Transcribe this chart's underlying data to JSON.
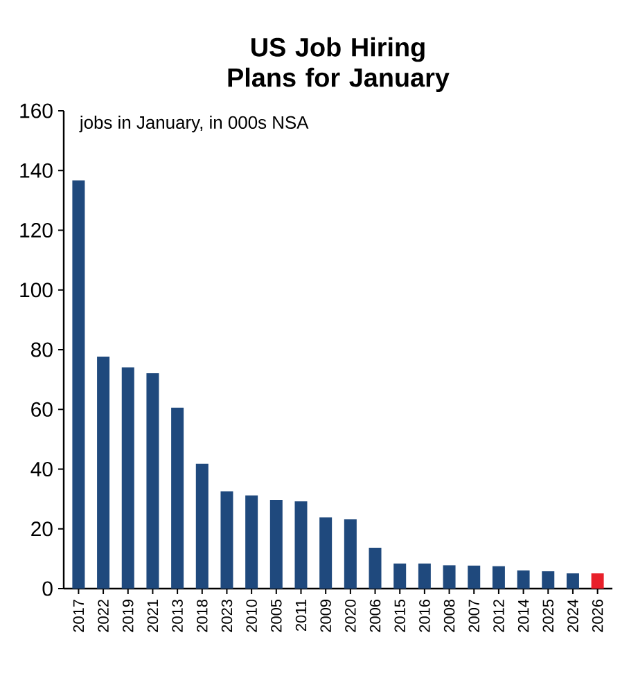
{
  "chart_data": {
    "type": "bar",
    "title": "US Job Hiring Plans for January",
    "annotations": [
      "jobs in January, in 000s NSA"
    ],
    "categories": [
      "2017",
      "2022",
      "2019",
      "2021",
      "2013",
      "2018",
      "2023",
      "2010",
      "2005",
      "2011",
      "2009",
      "2020",
      "2006",
      "2015",
      "2016",
      "2008",
      "2007",
      "2012",
      "2014",
      "2025",
      "2024",
      "2026"
    ],
    "values": [
      136.7,
      77.7,
      74.1,
      72.1,
      60.6,
      41.8,
      32.6,
      31.2,
      29.7,
      29.2,
      23.8,
      23.2,
      13.7,
      8.4,
      8.4,
      7.8,
      7.7,
      7.5,
      6.1,
      5.8,
      5.1,
      5.1
    ],
    "colors": [
      "#1f497d",
      "#1f497d",
      "#1f497d",
      "#1f497d",
      "#1f497d",
      "#1f497d",
      "#1f497d",
      "#1f497d",
      "#1f497d",
      "#1f497d",
      "#1f497d",
      "#1f497d",
      "#1f497d",
      "#1f497d",
      "#1f497d",
      "#1f497d",
      "#1f497d",
      "#1f497d",
      "#1f497d",
      "#1f497d",
      "#1f497d",
      "#e8202a"
    ],
    "ylim": [
      0,
      160
    ],
    "yticks": [
      0,
      20,
      40,
      60,
      80,
      100,
      120,
      140,
      160
    ],
    "grid": false
  }
}
